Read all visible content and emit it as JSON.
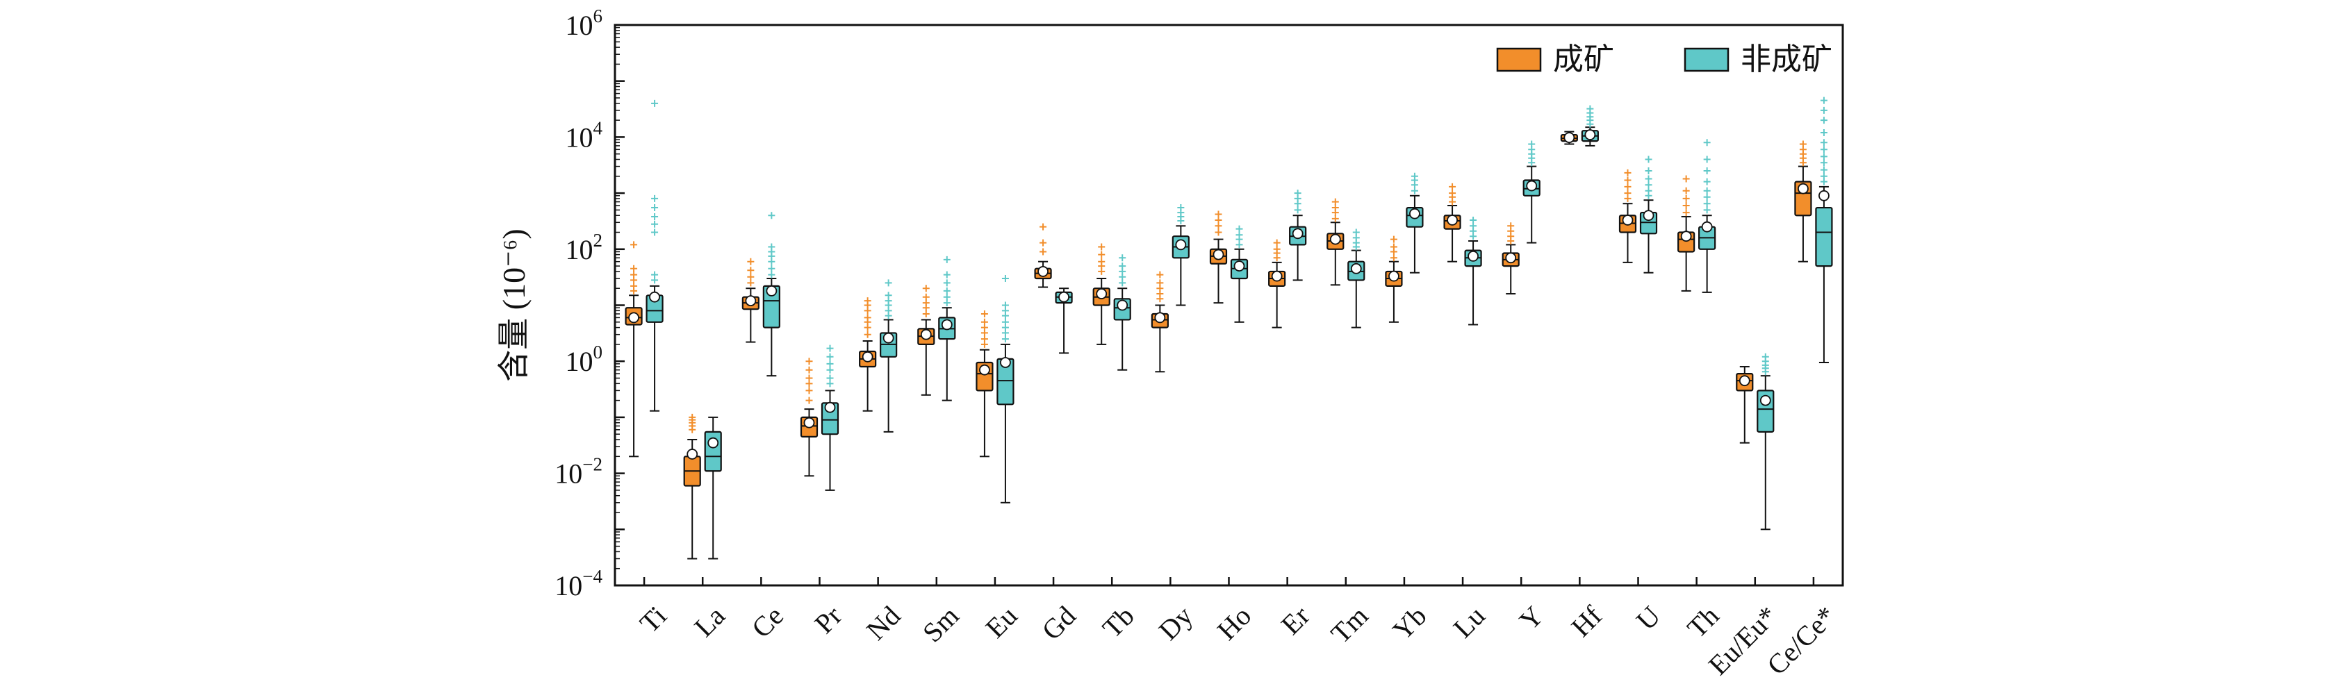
{
  "chart_data": {
    "type": "box",
    "ylabel": "含量 (10⁻⁶)",
    "yscale": "log",
    "ylim": [
      0.0001,
      1000000
    ],
    "yticks": [
      {
        "value": 0.0001,
        "base": "10",
        "exp": "−4"
      },
      {
        "value": 0.01,
        "base": "10",
        "exp": "−2"
      },
      {
        "value": 1,
        "base": "10",
        "exp": "0"
      },
      {
        "value": 100,
        "base": "10",
        "exp": "2"
      },
      {
        "value": 10000,
        "base": "10",
        "exp": "4"
      },
      {
        "value": 1000000,
        "base": "10",
        "exp": "6"
      }
    ],
    "legend_position": "top-right",
    "categories": [
      "Ti",
      "La",
      "Ce",
      "Pr",
      "Nd",
      "Sm",
      "Eu",
      "Gd",
      "Tb",
      "Dy",
      "Ho",
      "Er",
      "Tm",
      "Yb",
      "Lu",
      "Y",
      "Hf",
      "U",
      "Th",
      "Eu/Eu*",
      "Ce/Ce*"
    ],
    "series": [
      {
        "name": "成矿",
        "color": "#f28e2b",
        "boxes": [
          {
            "whislo": 0.02,
            "q1": 4.5,
            "med": 6,
            "q3": 9,
            "whishi": 15,
            "mean": 6,
            "fliers_hi": [
              18,
              22,
              28,
              35,
              45,
              120
            ]
          },
          {
            "whislo": 0.0003,
            "q1": 0.006,
            "med": 0.011,
            "q3": 0.02,
            "whishi": 0.04,
            "mean": 0.022,
            "fliers_hi": [
              0.06,
              0.07,
              0.08,
              0.09,
              0.1
            ]
          },
          {
            "whislo": 2.2,
            "q1": 8.5,
            "med": 11,
            "q3": 14,
            "whishi": 20,
            "mean": 12,
            "fliers_hi": [
              25,
              32,
              42,
              60
            ]
          },
          {
            "whislo": 0.009,
            "q1": 0.045,
            "med": 0.07,
            "q3": 0.1,
            "whishi": 0.14,
            "mean": 0.08,
            "fliers_hi": [
              0.2,
              0.3,
              0.4,
              0.5,
              0.7,
              1.0
            ]
          },
          {
            "whislo": 0.13,
            "q1": 0.8,
            "med": 1.1,
            "q3": 1.5,
            "whishi": 2.3,
            "mean": 1.2,
            "fliers_hi": [
              3,
              4,
              5,
              6,
              8,
              10,
              12
            ]
          },
          {
            "whislo": 0.25,
            "q1": 2.0,
            "med": 2.8,
            "q3": 3.8,
            "whishi": 5.5,
            "mean": 3,
            "fliers_hi": [
              7,
              9,
              11,
              14,
              20
            ]
          },
          {
            "whislo": 0.02,
            "q1": 0.3,
            "med": 0.6,
            "q3": 0.95,
            "whishi": 1.6,
            "mean": 0.7,
            "fliers_hi": [
              2,
              2.5,
              3.2,
              4,
              5,
              7
            ]
          },
          {
            "whislo": 21,
            "q1": 30,
            "med": 37,
            "q3": 45,
            "whishi": 60,
            "mean": 40,
            "fliers_hi": [
              90,
              130,
              250
            ]
          },
          {
            "whislo": 2,
            "q1": 10,
            "med": 14,
            "q3": 20,
            "whishi": 30,
            "mean": 16,
            "fliers_hi": [
              40,
              50,
              60,
              80,
              110
            ]
          },
          {
            "whislo": 0.65,
            "q1": 4.0,
            "med": 5.5,
            "q3": 7.0,
            "whishi": 10,
            "mean": 6,
            "fliers_hi": [
              13,
              16,
              20,
              25,
              35
            ]
          },
          {
            "whislo": 11,
            "q1": 55,
            "med": 75,
            "q3": 100,
            "whishi": 150,
            "mean": 80,
            "fliers_hi": [
              200,
              260,
              330,
              420
            ]
          },
          {
            "whislo": 4,
            "q1": 22,
            "med": 30,
            "q3": 40,
            "whishi": 58,
            "mean": 33,
            "fliers_hi": [
              70,
              85,
              100,
              130
            ]
          },
          {
            "whislo": 23,
            "q1": 100,
            "med": 140,
            "q3": 190,
            "whishi": 300,
            "mean": 150,
            "fliers_hi": [
              350,
              450,
              550,
              700
            ]
          },
          {
            "whislo": 5,
            "q1": 22,
            "med": 30,
            "q3": 40,
            "whishi": 60,
            "mean": 33,
            "fliers_hi": [
              70,
              90,
              110,
              150
            ]
          },
          {
            "whislo": 60,
            "q1": 230,
            "med": 320,
            "q3": 400,
            "whishi": 600,
            "mean": 330,
            "fliers_hi": [
              700,
              850,
              1000,
              1300
            ]
          },
          {
            "whislo": 16,
            "q1": 50,
            "med": 65,
            "q3": 85,
            "whishi": 120,
            "mean": 70,
            "fliers_hi": [
              140,
              170,
              210,
              260
            ]
          },
          {
            "whislo": 7500,
            "q1": 8500,
            "med": 9500,
            "q3": 11000,
            "whishi": 12500,
            "mean": 9800,
            "fliers_hi": []
          },
          {
            "whislo": 58,
            "q1": 200,
            "med": 290,
            "q3": 400,
            "whishi": 650,
            "mean": 330,
            "fliers_hi": [
              800,
              1000,
              1300,
              1700,
              2300
            ]
          },
          {
            "whislo": 18,
            "q1": 90,
            "med": 150,
            "q3": 200,
            "whishi": 380,
            "mean": 170,
            "fliers_hi": [
              450,
              600,
              800,
              1100,
              1800
            ]
          },
          {
            "whislo": 0.035,
            "q1": 0.3,
            "med": 0.45,
            "q3": 0.6,
            "whishi": 0.8,
            "mean": 0.45,
            "fliers_hi": []
          },
          {
            "whislo": 60,
            "q1": 400,
            "med": 1000,
            "q3": 1600,
            "whishi": 3000,
            "mean": 1200,
            "fliers_hi": [
              3500,
              4200,
              5000,
              6000,
              7500
            ]
          }
        ]
      },
      {
        "name": "非成矿",
        "color": "#5fc8c8",
        "boxes": [
          {
            "whislo": 0.13,
            "q1": 5,
            "med": 8,
            "q3": 15,
            "whishi": 22,
            "mean": 14,
            "fliers_hi": [
              28,
              35,
              200,
              280,
              380,
              550,
              800,
              40000
            ]
          },
          {
            "whislo": 0.0003,
            "q1": 0.011,
            "med": 0.02,
            "q3": 0.055,
            "whishi": 0.1,
            "mean": 0.035,
            "fliers_hi": []
          },
          {
            "whislo": 0.55,
            "q1": 4,
            "med": 12,
            "q3": 22,
            "whishi": 30,
            "mean": 18,
            "fliers_hi": [
              35,
              45,
              60,
              75,
              90,
              110,
              400
            ]
          },
          {
            "whislo": 0.005,
            "q1": 0.05,
            "med": 0.09,
            "q3": 0.18,
            "whishi": 0.3,
            "mean": 0.15,
            "fliers_hi": [
              0.4,
              0.5,
              0.7,
              0.9,
              1.2,
              1.7
            ]
          },
          {
            "whislo": 0.055,
            "q1": 1.2,
            "med": 2.0,
            "q3": 3.2,
            "whishi": 5.5,
            "mean": 2.6,
            "fliers_hi": [
              6.5,
              8,
              10,
              12,
              15,
              25
            ]
          },
          {
            "whislo": 0.2,
            "q1": 2.5,
            "med": 3.8,
            "q3": 6.0,
            "whishi": 9,
            "mean": 4.5,
            "fliers_hi": [
              11,
              14,
              18,
              25,
              35,
              65
            ]
          },
          {
            "whislo": 0.003,
            "q1": 0.17,
            "med": 0.45,
            "q3": 1.1,
            "whishi": 2,
            "mean": 0.95,
            "fliers_hi": [
              2.5,
              3.2,
              4,
              5,
              6.5,
              8,
              10,
              30
            ]
          },
          {
            "whislo": 1.4,
            "q1": 11,
            "med": 14,
            "q3": 17,
            "whishi": 20,
            "mean": 14,
            "fliers_hi": []
          },
          {
            "whislo": 0.7,
            "q1": 5.5,
            "med": 9,
            "q3": 13,
            "whishi": 20,
            "mean": 10,
            "fliers_hi": [
              25,
              32,
              40,
              50,
              70
            ]
          },
          {
            "whislo": 10,
            "q1": 70,
            "med": 110,
            "q3": 170,
            "whishi": 260,
            "mean": 120,
            "fliers_hi": [
              320,
              380,
              450,
              550
            ]
          },
          {
            "whislo": 5,
            "q1": 30,
            "med": 45,
            "q3": 65,
            "whishi": 100,
            "mean": 50,
            "fliers_hi": [
              120,
              150,
              180,
              230
            ]
          },
          {
            "whislo": 28,
            "q1": 120,
            "med": 170,
            "q3": 250,
            "whishi": 400,
            "mean": 190,
            "fliers_hi": [
              500,
              650,
              800,
              1000
            ]
          },
          {
            "whislo": 4,
            "q1": 28,
            "med": 40,
            "q3": 60,
            "whishi": 95,
            "mean": 45,
            "fliers_hi": [
              110,
              130,
              160,
              200
            ]
          },
          {
            "whislo": 38,
            "q1": 250,
            "med": 400,
            "q3": 550,
            "whishi": 900,
            "mean": 430,
            "fliers_hi": [
              1100,
              1400,
              1700,
              2000
            ]
          },
          {
            "whislo": 4.5,
            "q1": 50,
            "med": 70,
            "q3": 95,
            "whishi": 140,
            "mean": 75,
            "fliers_hi": [
              170,
              210,
              260,
              330
            ]
          },
          {
            "whislo": 130,
            "q1": 900,
            "med": 1200,
            "q3": 1700,
            "whishi": 3000,
            "mean": 1350,
            "fliers_hi": [
              3500,
              4200,
              5000,
              6000,
              7500
            ]
          },
          {
            "whislo": 7000,
            "q1": 8500,
            "med": 10500,
            "q3": 13000,
            "whishi": 15000,
            "mean": 11000,
            "fliers_hi": [
              17000,
              20000,
              23000,
              27000,
              32000
            ]
          },
          {
            "whislo": 38,
            "q1": 190,
            "med": 300,
            "q3": 450,
            "whishi": 750,
            "mean": 400,
            "fliers_hi": [
              900,
              1100,
              1400,
              1800,
              2500,
              4000
            ]
          },
          {
            "whislo": 17,
            "q1": 100,
            "med": 160,
            "q3": 250,
            "whishi": 400,
            "mean": 250,
            "fliers_hi": [
              500,
              650,
              850,
              1100,
              1600,
              2500,
              4000,
              8000
            ]
          },
          {
            "whislo": 0.001,
            "q1": 0.055,
            "med": 0.14,
            "q3": 0.3,
            "whishi": 0.55,
            "mean": 0.2,
            "fliers_hi": [
              0.65,
              0.75,
              0.85,
              1.0,
              1.2
            ]
          },
          {
            "whislo": 0.95,
            "q1": 50,
            "med": 200,
            "q3": 550,
            "whishi": 1300,
            "mean": 900,
            "fliers_hi": [
              1600,
              2000,
              2600,
              3500,
              4500,
              6000,
              8000,
              12000,
              20000,
              30000,
              45000
            ]
          }
        ]
      }
    ]
  }
}
